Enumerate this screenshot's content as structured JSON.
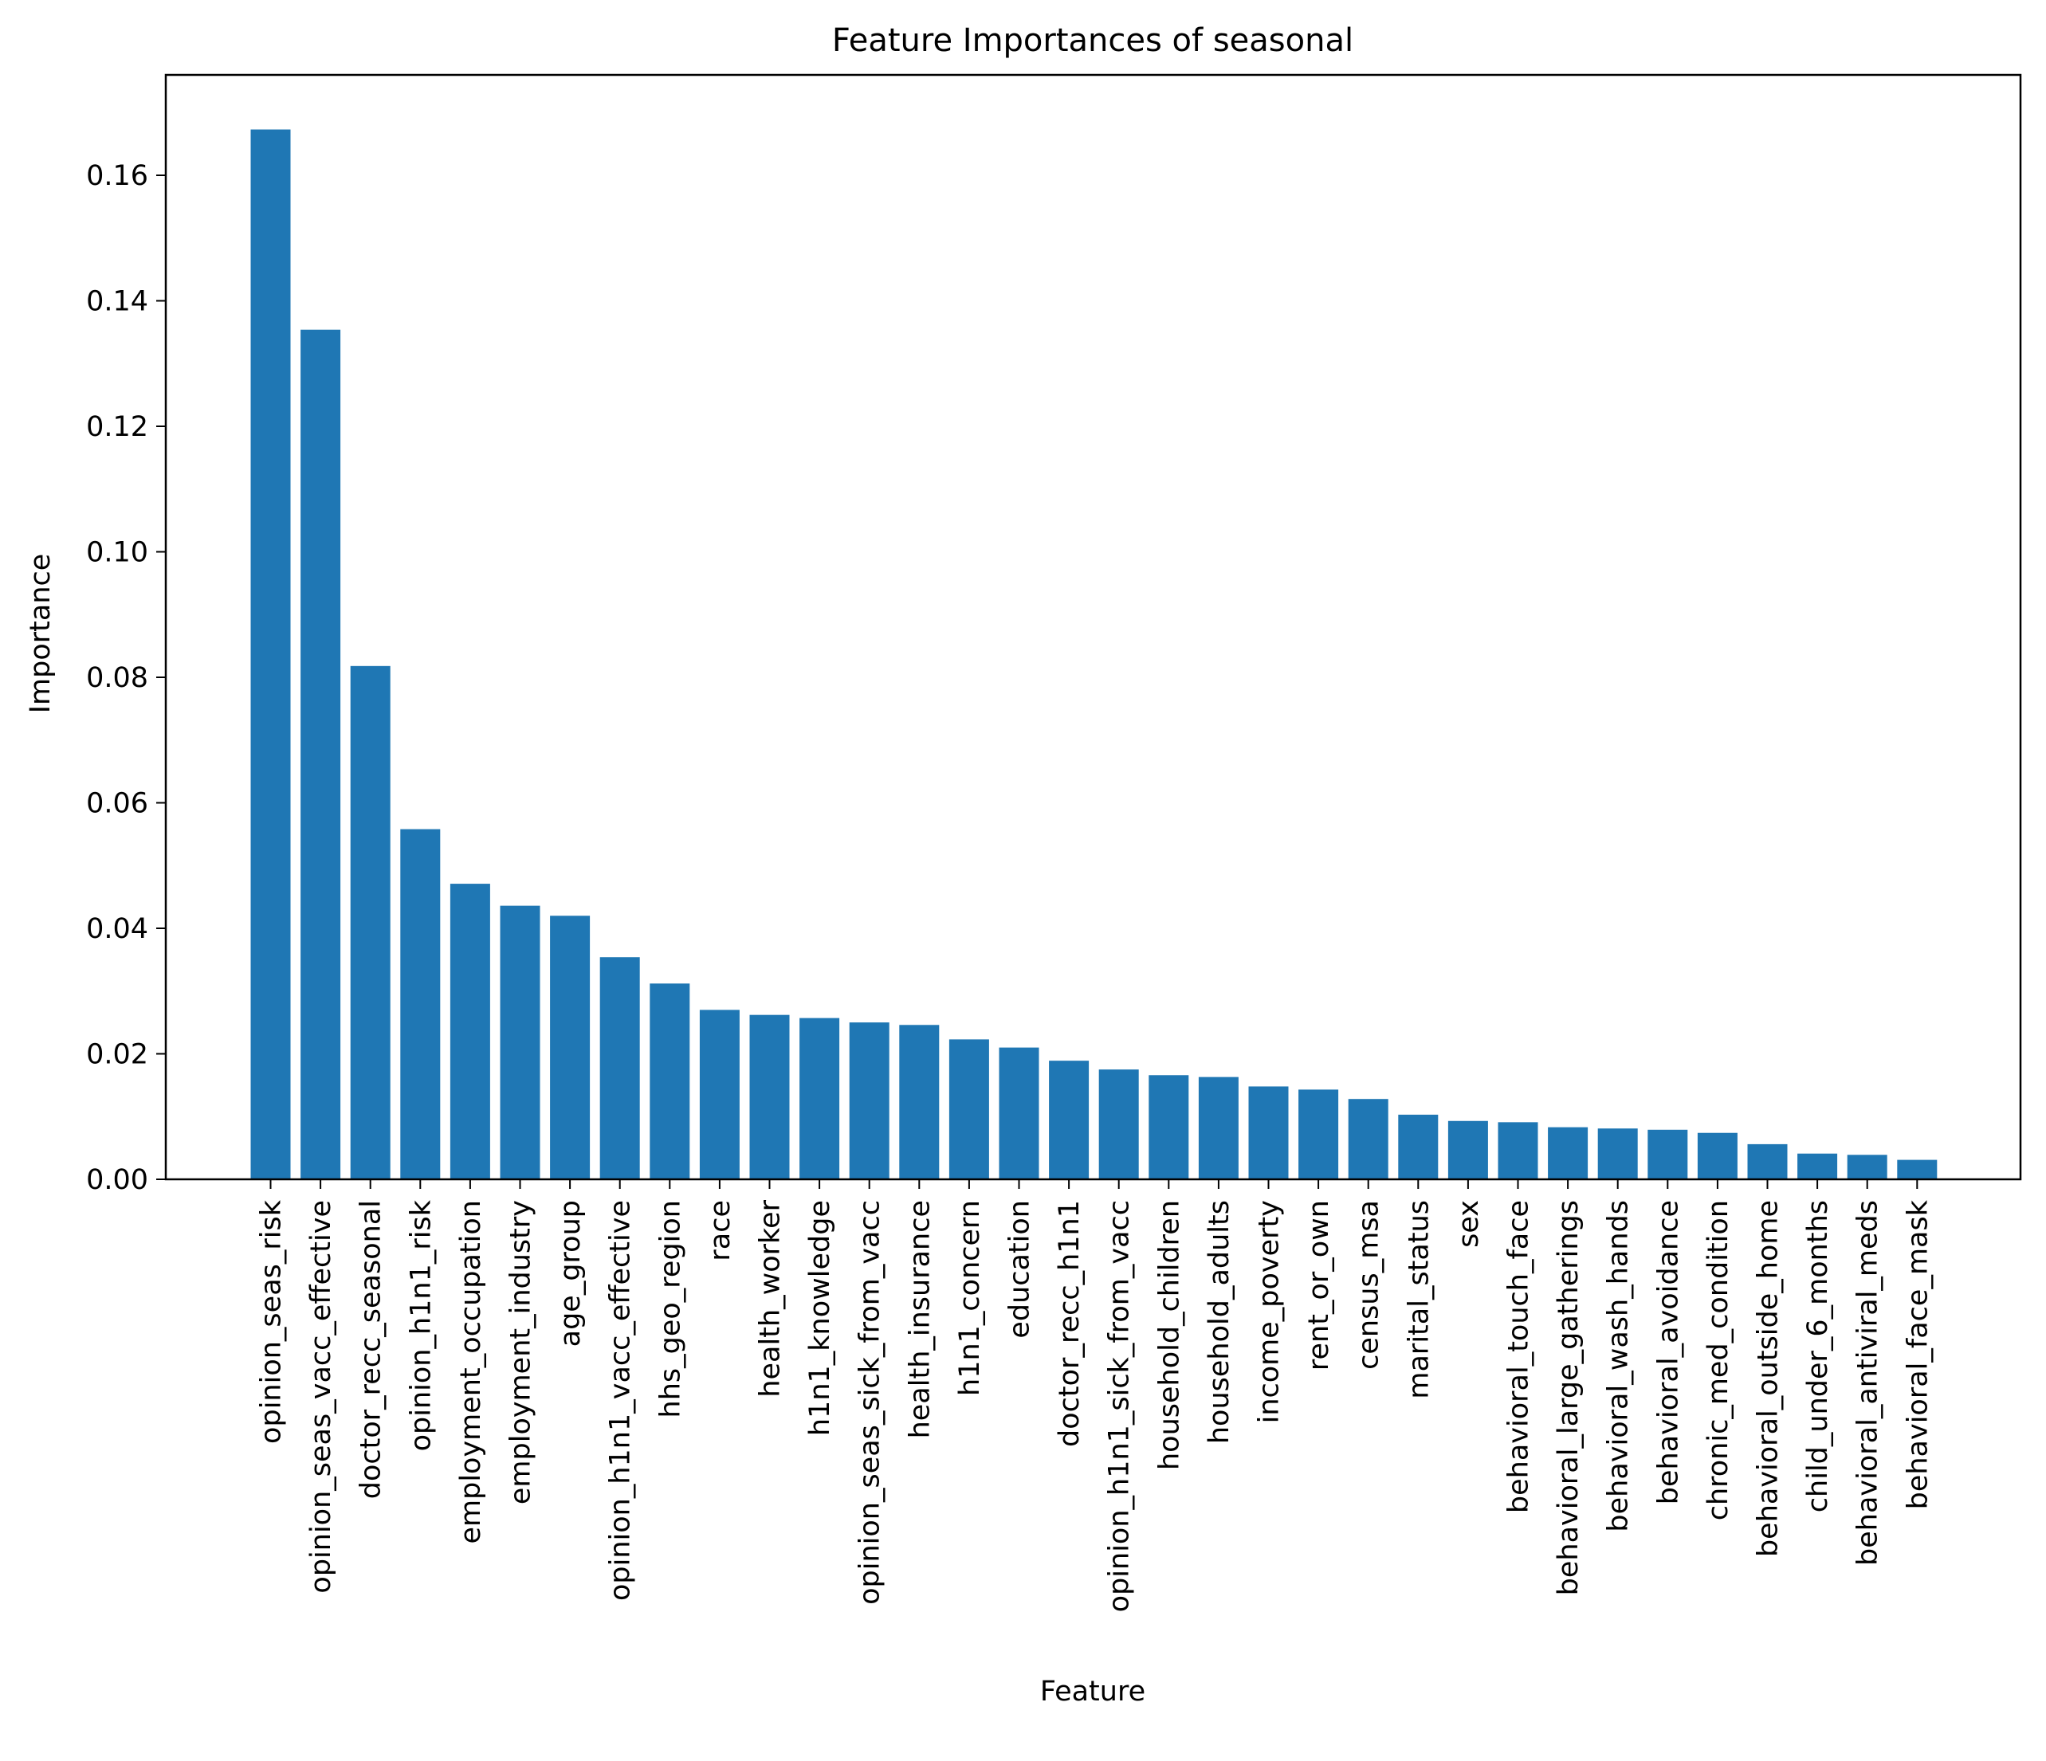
{
  "chart_data": {
    "type": "bar",
    "title": "Feature Importances of seasonal",
    "xlabel": "Feature",
    "ylabel": "Importance",
    "ylim": [
      0,
      0.176
    ],
    "yticks": [
      "0.00",
      "0.02",
      "0.04",
      "0.06",
      "0.08",
      "0.10",
      "0.12",
      "0.14",
      "0.16"
    ],
    "grid": false,
    "bar_color": "#1f77b4",
    "categories": [
      "opinion_seas_risk",
      "opinion_seas_vacc_effective",
      "doctor_recc_seasonal",
      "opinion_h1n1_risk",
      "employment_occupation",
      "employment_industry",
      "age_group",
      "opinion_h1n1_vacc_effective",
      "hhs_geo_region",
      "race",
      "health_worker",
      "h1n1_knowledge",
      "opinion_seas_sick_from_vacc",
      "health_insurance",
      "h1n1_concern",
      "education",
      "doctor_recc_h1n1",
      "opinion_h1n1_sick_from_vacc",
      "household_children",
      "household_adults",
      "income_poverty",
      "rent_or_own",
      "census_msa",
      "marital_status",
      "sex",
      "behavioral_touch_face",
      "behavioral_large_gatherings",
      "behavioral_wash_hands",
      "behavioral_avoidance",
      "chronic_med_condition",
      "behavioral_outside_home",
      "child_under_6_months",
      "behavioral_antiviral_meds",
      "behavioral_face_mask"
    ],
    "values": [
      0.1673,
      0.1354,
      0.0818,
      0.0558,
      0.0471,
      0.0436,
      0.042,
      0.0354,
      0.0312,
      0.027,
      0.0262,
      0.0257,
      0.025,
      0.0246,
      0.0223,
      0.021,
      0.0189,
      0.0175,
      0.0166,
      0.0163,
      0.0148,
      0.0143,
      0.0128,
      0.0103,
      0.0093,
      0.0091,
      0.0083,
      0.0081,
      0.0079,
      0.0074,
      0.0056,
      0.0041,
      0.0039,
      0.0031
    ]
  }
}
